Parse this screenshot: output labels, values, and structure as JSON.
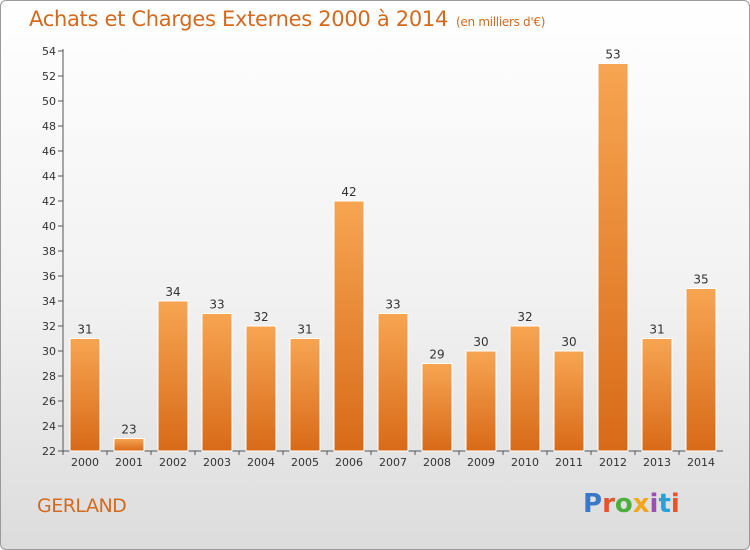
{
  "header": {
    "title": "Achats et Charges Externes 2000 à 2014",
    "subtitle": "(en milliers d'€)"
  },
  "footer": {
    "place": "GERLAND",
    "brand": "Proxiti",
    "brand_colors": [
      "#3a78c8",
      "#e8542a",
      "#4cae3c",
      "#f2a71b",
      "#9b4fb5",
      "#2aa0d8",
      "#e8542a"
    ]
  },
  "colors": {
    "bar_top": "#f7a552",
    "bar_bottom": "#d86a18",
    "accent": "#d36a20",
    "axis": "#555555"
  },
  "chart_data": {
    "type": "bar",
    "categories": [
      "2000",
      "2001",
      "2002",
      "2003",
      "2004",
      "2005",
      "2006",
      "2007",
      "2008",
      "2009",
      "2010",
      "2011",
      "2012",
      "2013",
      "2014"
    ],
    "values": [
      31,
      23,
      34,
      33,
      32,
      31,
      42,
      33,
      29,
      30,
      32,
      30,
      53,
      31,
      35
    ],
    "ylim": [
      22,
      54
    ],
    "yticks": [
      22,
      24,
      26,
      28,
      30,
      32,
      34,
      36,
      38,
      40,
      42,
      44,
      46,
      48,
      50,
      52,
      54
    ],
    "grid": false,
    "legend": "none"
  }
}
